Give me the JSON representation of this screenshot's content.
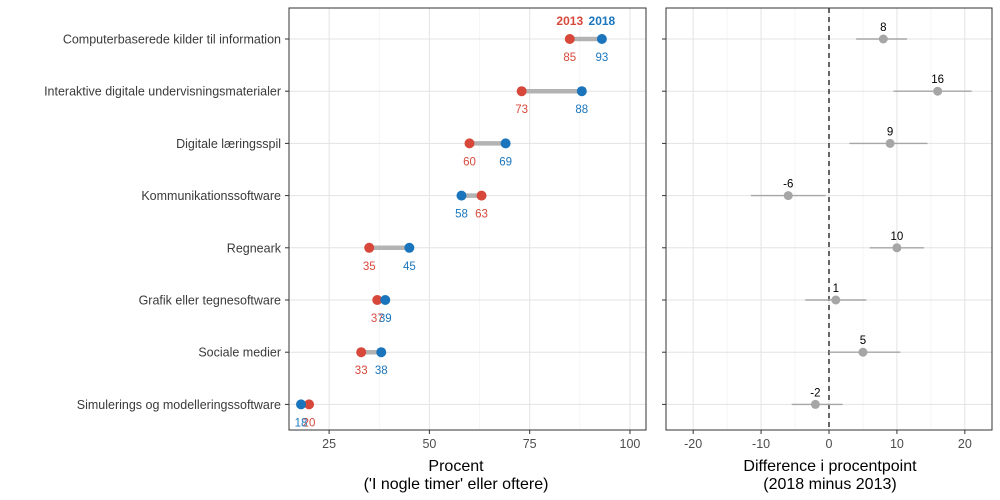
{
  "chart_data": [
    {
      "type": "dumbbell",
      "xlabel": "Procent",
      "xlabel_sub": "('I nogle timer' eller oftere)",
      "xlim": [
        15,
        104
      ],
      "xticks": [
        25,
        50,
        75,
        100
      ],
      "grid": true,
      "legend": {
        "position": "top-right",
        "labels": [
          "2013",
          "2018"
        ]
      },
      "categories": [
        "Computerbaserede kilder til information",
        "Interaktive digitale undervisningsmaterialer",
        "Digitale læringsspil",
        "Kommunikationssoftware",
        "Regneark",
        "Grafik eller tegnesoftware",
        "Sociale medier",
        "Simulerings og modelleringssoftware"
      ],
      "series": [
        {
          "name": "2013",
          "color": "#d7483b",
          "values": [
            85,
            73,
            60,
            63,
            35,
            37,
            33,
            20
          ]
        },
        {
          "name": "2018",
          "color": "#1b75bc",
          "values": [
            93,
            88,
            69,
            58,
            45,
            39,
            38,
            18
          ]
        }
      ]
    },
    {
      "type": "errorbar",
      "xlabel": "Difference i procentpoint",
      "xlabel_sub": "(2018 minus 2013)",
      "xlim": [
        -24,
        24
      ],
      "xticks": [
        -20,
        -10,
        0,
        10,
        20
      ],
      "reference_line": 0,
      "grid": true,
      "values": [
        8,
        16,
        9,
        -6,
        10,
        1,
        5,
        -2
      ],
      "ci_low": [
        4,
        9.5,
        3,
        -11.5,
        6,
        -3.5,
        0,
        -5.5
      ],
      "ci_high": [
        11.5,
        21,
        14.5,
        -0.5,
        14,
        5.5,
        10.5,
        2
      ],
      "color": "#a6a6a6"
    }
  ]
}
